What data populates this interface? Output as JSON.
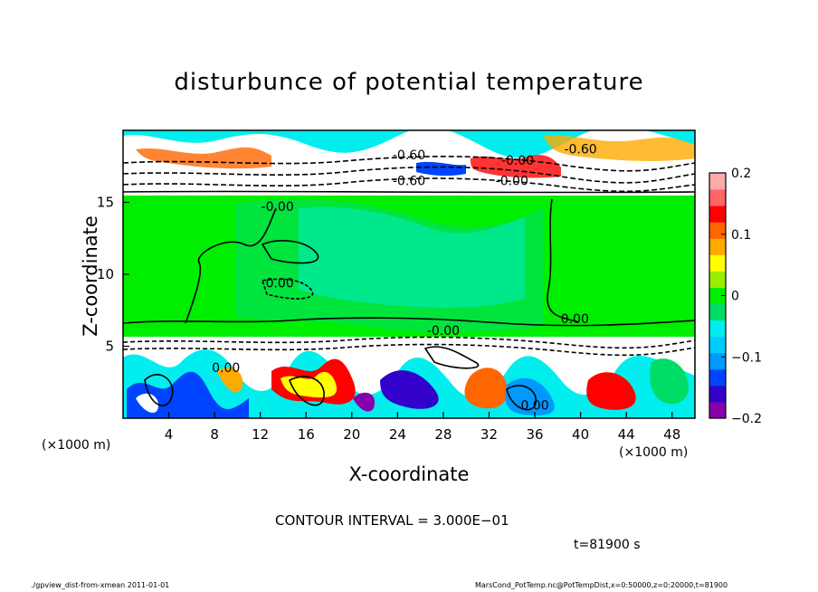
{
  "chart_data": {
    "type": "heatmap",
    "title": "disturbunce of potential temperature",
    "xlabel": "X-coordinate",
    "ylabel": "Z-coordinate",
    "x_unit_left": "(×1000 m)",
    "x_unit_right": "(×1000 m)",
    "xlim": [
      0,
      50
    ],
    "ylim": [
      0,
      20
    ],
    "xticks": [
      4,
      8,
      12,
      16,
      20,
      24,
      28,
      32,
      36,
      40,
      44,
      48
    ],
    "yticks": [
      5,
      10,
      15
    ],
    "colorbar": {
      "range": [
        -0.2,
        0.2
      ],
      "ticks": [
        {
          "value": 0.2,
          "label": "0.2"
        },
        {
          "value": 0.1,
          "label": "0.1"
        },
        {
          "value": 0,
          "label": "0"
        },
        {
          "value": -0.1,
          "label": "−0.1"
        },
        {
          "value": -0.2,
          "label": "−0.2"
        }
      ],
      "colors": [
        "#8800aa",
        "#3300cc",
        "#0044ff",
        "#0099ff",
        "#00ccff",
        "#00eeee",
        "#00dd66",
        "#00ee00",
        "#99ee00",
        "#ffff00",
        "#ffaa00",
        "#ff6600",
        "#ff0000",
        "#ff6666",
        "#ffaaaa"
      ]
    },
    "contour_labels": [
      {
        "text": "-0.00",
        "x": 13.5,
        "y": 14.4
      },
      {
        "text": "0.00",
        "x": 13.7,
        "y": 9.1
      },
      {
        "text": "-0.00",
        "x": 28.0,
        "y": 5.8
      },
      {
        "text": "0.00",
        "x": 39.5,
        "y": 6.6
      },
      {
        "text": "0.00",
        "x": 9.0,
        "y": 3.2
      },
      {
        "text": "0.00",
        "x": 36.0,
        "y": 0.6
      },
      {
        "text": "-0.60",
        "x": 25.0,
        "y": 16.2
      },
      {
        "text": "-0.00",
        "x": 34.0,
        "y": 16.2
      },
      {
        "text": "-0.60",
        "x": 25.0,
        "y": 18.0
      },
      {
        "text": "-0.00",
        "x": 34.5,
        "y": 17.6
      },
      {
        "text": "-0.60",
        "x": 40.0,
        "y": 18.4
      }
    ],
    "contour_interval": "CONTOUR INTERVAL = 3.000E−01",
    "time": "t=81900 s"
  },
  "footer": {
    "left": "./gpview_dist-from-xmean  2011-01-01",
    "right": "MarsCond_PotTemp.nc@PotTempDist,x=0:50000,z=0:20000,t=81900"
  }
}
